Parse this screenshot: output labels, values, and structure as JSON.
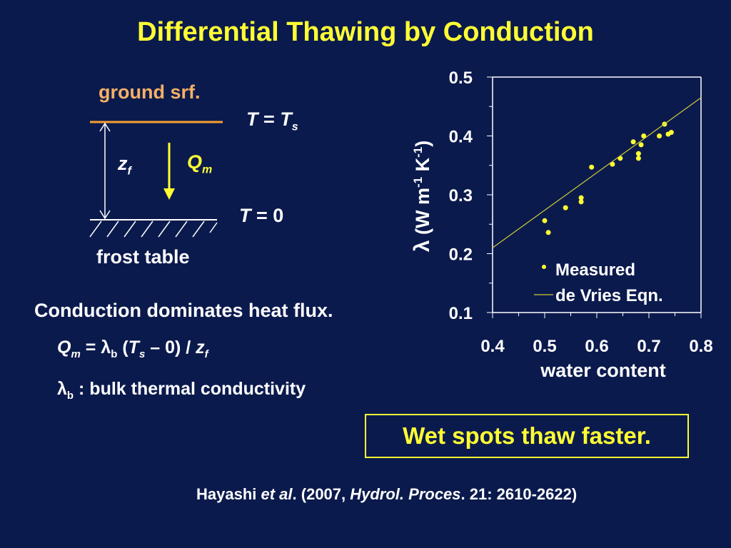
{
  "title": "Differential Thawing by Conduction",
  "diagram": {
    "ground_label": "ground srf.",
    "ts_T": "T",
    "ts_eq": " = ",
    "ts_Ts": "T",
    "ts_sub": "s",
    "zf": "z",
    "zf_sub": "f",
    "qm": "Q",
    "qm_sub": "m",
    "t0_T": "T",
    "t0_rest": " = 0",
    "frost_label": "frost table"
  },
  "text": {
    "line1": "Conduction dominates heat flux.",
    "eq_Q": "Q",
    "eq_Q_sub": "m",
    "eq_eq": " = ",
    "eq_lambda": "λ",
    "eq_lambda_sub": "b",
    "eq_open": " (",
    "eq_T": "T",
    "eq_T_sub": "s",
    "eq_rest": " – 0) / ",
    "eq_z": "z",
    "eq_z_sub": "f",
    "lb_lambda": "λ",
    "lb_sub": "b",
    "lb_rest": " : bulk thermal conductivity"
  },
  "callout": "Wet spots thaw faster.",
  "citation": {
    "a": "Hayashi ",
    "b": "et al",
    "c": ". (2007, ",
    "d": "Hydrol. Proces",
    "e": ". 21: 2610-2622)"
  },
  "colors": {
    "background": "#0b1a4d",
    "accent": "#ffff33",
    "ground": "#f5b066",
    "text": "#ffffff"
  },
  "chart_data": {
    "type": "scatter",
    "xlabel": "water content",
    "ylabel": "λ (W m-1 K-1)",
    "ylabel_parts": {
      "sym": "λ",
      "a": " (W m",
      "s1": "-1",
      "b": " K",
      "s2": "-1",
      "c": ")"
    },
    "xlim": [
      0.4,
      0.8
    ],
    "ylim": [
      0.1,
      0.5
    ],
    "x_ticks": [
      "0.4",
      "0.5",
      "0.6",
      "0.7",
      "0.8"
    ],
    "y_ticks": [
      "0.1",
      "0.2",
      "0.3",
      "0.4",
      "0.5"
    ],
    "legend_position": "bottom-right",
    "series": [
      {
        "name": "Measured",
        "type": "scatter",
        "color": "#ffff33",
        "points": [
          [
            0.5,
            0.256
          ],
          [
            0.507,
            0.236
          ],
          [
            0.54,
            0.278
          ],
          [
            0.57,
            0.295
          ],
          [
            0.57,
            0.288
          ],
          [
            0.59,
            0.347
          ],
          [
            0.63,
            0.352
          ],
          [
            0.645,
            0.362
          ],
          [
            0.67,
            0.39
          ],
          [
            0.68,
            0.37
          ],
          [
            0.68,
            0.362
          ],
          [
            0.685,
            0.385
          ],
          [
            0.69,
            0.4
          ],
          [
            0.72,
            0.4
          ],
          [
            0.73,
            0.42
          ],
          [
            0.737,
            0.403
          ],
          [
            0.743,
            0.406
          ]
        ]
      },
      {
        "name": "de Vries Eqn.",
        "type": "line",
        "color": "#cccc33",
        "points": [
          [
            0.4,
            0.21
          ],
          [
            0.8,
            0.465
          ]
        ]
      }
    ]
  }
}
